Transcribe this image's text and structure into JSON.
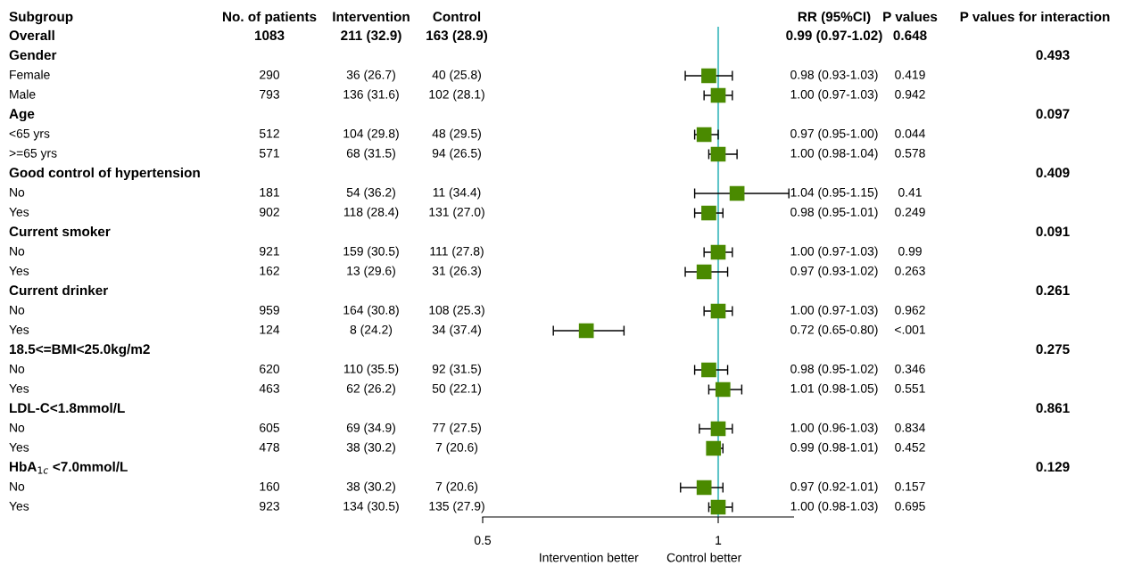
{
  "chart_data": [
    {
      "type": "other",
      "categories": [
        "Subgroup",
        "No. of patients",
        "Intervention",
        "Control",
        "RR (95%CI)",
        "P values",
        "P values for interaction"
      ],
      "cell_labels": [
        [
          "Overall",
          "1083",
          "211 (32.9)",
          "163 (28.9)",
          "0.99 (0.97-1.02)",
          "0.648",
          null
        ],
        [
          "Gender",
          null,
          null,
          null,
          null,
          null,
          "0.493"
        ],
        [
          "Female",
          "290",
          "36 (26.7)",
          "40 (25.8)",
          "0.98 (0.93-1.03)",
          "0.419",
          null
        ],
        [
          "Male",
          "793",
          "136 (31.6)",
          "102 (28.1)",
          "1.00 (0.97-1.03)",
          "0.942",
          null
        ],
        [
          "Age",
          null,
          null,
          null,
          null,
          null,
          "0.097"
        ],
        [
          "<65 yrs",
          "512",
          "104 (29.8)",
          "48 (29.5)",
          "0.97 (0.95-1.00)",
          "0.044",
          null
        ],
        [
          ">=65 yrs",
          "571",
          "68 (31.5)",
          "94 (26.5)",
          "1.00 (0.98-1.04)",
          "0.578",
          null
        ],
        [
          "Good control of hypertension",
          null,
          null,
          null,
          null,
          null,
          "0.409"
        ],
        [
          "No",
          "181",
          "54 (36.2)",
          "11 (34.4)",
          "1.04 (0.95-1.15)",
          "0.41",
          null
        ],
        [
          "Yes",
          "902",
          "118 (28.4)",
          "131 (27.0)",
          "0.98 (0.95-1.01)",
          "0.249",
          null
        ],
        [
          "Current smoker",
          null,
          null,
          null,
          null,
          null,
          "0.091"
        ],
        [
          "No",
          "921",
          "159 (30.5)",
          "111 (27.8)",
          "1.00 (0.97-1.03)",
          "0.99",
          null
        ],
        [
          "Yes",
          "162",
          "13 (29.6)",
          "31 (26.3)",
          "0.97 (0.93-1.02)",
          "0.263",
          null
        ],
        [
          "Current drinker",
          null,
          null,
          null,
          null,
          null,
          "0.261"
        ],
        [
          "No",
          "959",
          "164 (30.8)",
          "108 (25.3)",
          "1.00 (0.97-1.03)",
          "0.962",
          null
        ],
        [
          "Yes",
          "124",
          "8 (24.2)",
          "34 (37.4)",
          "0.72 (0.65-0.80)",
          "<.001",
          null
        ],
        [
          "18.5<=BMI<25.0kg/m2",
          null,
          null,
          null,
          null,
          null,
          "0.275"
        ],
        [
          "No",
          "620",
          "110 (35.5)",
          "92 (31.5)",
          "0.98 (0.95-1.02)",
          "0.346",
          null
        ],
        [
          "Yes",
          "463",
          "62 (26.2)",
          "50 (22.1)",
          "1.01 (0.98-1.05)",
          "0.551",
          null
        ],
        [
          "LDL-C<1.8mmol/L",
          null,
          null,
          null,
          null,
          null,
          "0.861"
        ],
        [
          "No",
          "605",
          "69 (34.9)",
          "77 (27.5)",
          "1.00 (0.96-1.03)",
          "0.834",
          null
        ],
        [
          "Yes",
          "478",
          "38 (30.2)",
          "7 (20.6)",
          "0.99 (0.98-1.01)",
          "0.452",
          null
        ],
        [
          "HbA$_{1c}$ <7.0mmol/L",
          null,
          null,
          null,
          null,
          null,
          "0.129"
        ],
        [
          "No",
          "160",
          "38 (30.2)",
          "7 (20.6)",
          "0.97 (0.92-1.01)",
          "0.157",
          null
        ],
        [
          "Yes",
          "923",
          "134 (30.5)",
          "135 (27.9)",
          "1.00 (0.98-1.03)",
          "0.695",
          null
        ]
      ]
    },
    {
      "type": "scatter",
      "orientation": "horizontal",
      "marker": "square",
      "color": "#4a8a00",
      "tick_labels": "x",
      "categories": [
        null,
        null,
        null,
        null,
        null,
        null,
        null,
        null,
        null,
        null,
        null,
        null,
        null,
        null,
        null,
        null,
        null,
        null,
        null,
        null,
        null,
        null,
        null,
        null,
        null
      ],
      "values": [
        null,
        null,
        0.98,
        1.0,
        null,
        0.97,
        1.0,
        null,
        1.04,
        0.98,
        null,
        1.0,
        0.97,
        null,
        1.0,
        0.72,
        null,
        0.98,
        1.01,
        null,
        1.0,
        0.99,
        null,
        0.97,
        1.0
      ],
      "errors": [
        null,
        null,
        [
          0.93,
          1.03
        ],
        [
          0.97,
          1.03
        ],
        null,
        [
          0.95,
          1.0
        ],
        [
          0.98,
          1.04
        ],
        null,
        [
          0.95,
          1.15
        ],
        [
          0.95,
          1.01
        ],
        null,
        [
          0.97,
          1.03
        ],
        [
          0.93,
          1.02
        ],
        null,
        [
          0.97,
          1.03
        ],
        [
          0.65,
          0.8
        ],
        null,
        [
          0.95,
          1.02
        ],
        [
          0.98,
          1.05
        ],
        null,
        [
          0.96,
          1.03
        ],
        [
          0.98,
          1.01
        ],
        null,
        [
          0.92,
          1.01
        ],
        [
          0.98,
          1.03
        ]
      ],
      "xlim": [
        0.5,
        1.16
      ],
      "xticks": [
        0.5,
        1
      ],
      "ref_lines": [
        {
          "axis": "x",
          "value": 1,
          "color": "#5fc4c8"
        }
      ],
      "annotations": [
        "Intervention better",
        "Control better"
      ]
    }
  ]
}
